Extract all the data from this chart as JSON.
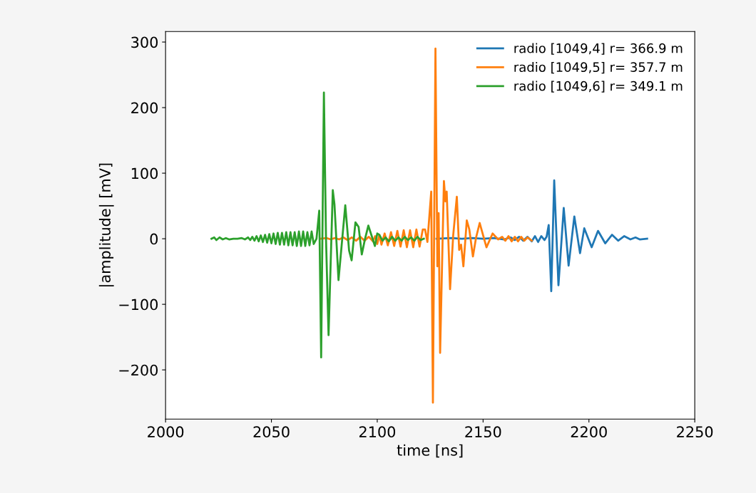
{
  "chart_data": {
    "type": "line",
    "xlabel": "time [ns]",
    "ylabel": "|amplitude| [mV]",
    "xlim": [
      2000,
      2250
    ],
    "xticks": [
      2000,
      2050,
      2100,
      2150,
      2200,
      2250
    ],
    "ylim": [
      -275,
      316
    ],
    "yticks": [
      {
        "value": -200,
        "label": "−200"
      },
      {
        "value": -100,
        "label": "−100"
      },
      0,
      100,
      200,
      300
    ],
    "grid": false,
    "legend": "top right",
    "marker": "none",
    "line_style": "solid",
    "series": [
      {
        "name": "radio [1049,4] r= 366.9 m",
        "color": "#1f77b4",
        "x": [
          2128,
          2135,
          2140,
          2145,
          2150,
          2155,
          2160,
          2163,
          2165,
          2167,
          2169,
          2171,
          2173,
          2174.5,
          2176,
          2177.5,
          2179,
          2180,
          2181,
          2182.2,
          2183.6,
          2185.6,
          2188.1,
          2190.4,
          2193.1,
          2195.8,
          2197.8,
          2201.3,
          2204.3,
          2207.7,
          2210.9,
          2213.8,
          2216.7,
          2219.6,
          2222,
          2224,
          2227.5
        ],
        "values": [
          0,
          1,
          0,
          1,
          0,
          1,
          -1,
          2,
          -2,
          3,
          -3,
          3,
          -4,
          4,
          -5,
          4,
          -2,
          3,
          21,
          -80,
          89,
          -71,
          47,
          -41,
          34,
          -22,
          16,
          -13,
          12,
          -7,
          6,
          -3,
          4,
          -1,
          2,
          -1,
          0
        ]
      },
      {
        "name": "radio [1049,5] r= 357.7 m",
        "color": "#ff7f0e",
        "x": [
          2073,
          2076,
          2078,
          2080,
          2082,
          2084,
          2086,
          2088,
          2090,
          2092,
          2094,
          2096,
          2098,
          2099,
          2100,
          2101,
          2102,
          2103.5,
          2105,
          2106.5,
          2108,
          2109.5,
          2111,
          2112.5,
          2114,
          2115.5,
          2117,
          2118.5,
          2120,
          2121.5,
          2122.6,
          2123.7,
          2125.5,
          2126.3,
          2127.5,
          2128.4,
          2129.0,
          2129.7,
          2131.5,
          2132.2,
          2132.8,
          2134.4,
          2135.9,
          2137.6,
          2138.7,
          2139.6,
          2140.7,
          2142.3,
          2143.5,
          2145.2,
          2146.7,
          2148.4,
          2151.6,
          2154.5,
          2157.1,
          2159,
          2160.5,
          2162,
          2163.5,
          2165,
          2166.5,
          2168,
          2169.5,
          2171,
          2173
        ],
        "values": [
          0,
          1,
          -1,
          1,
          -1,
          2,
          -2,
          2,
          -3,
          3,
          -3,
          3,
          -4,
          4,
          -8,
          6,
          -9,
          8,
          -10,
          10,
          -11,
          12,
          -12,
          13,
          -13,
          13,
          -13,
          14,
          -12,
          14,
          14,
          -5,
          72,
          -250,
          290,
          -42,
          39,
          -174,
          88,
          57,
          72,
          -77,
          6,
          64,
          -17,
          -9,
          -42,
          28,
          14,
          -27,
          2,
          24,
          -13,
          8,
          -1,
          3,
          -3,
          4,
          -4,
          3,
          -4,
          3,
          -3,
          2,
          -3
        ]
      },
      {
        "name": "radio [1049,6] r= 349.1 m",
        "color": "#2ca02c",
        "x": [
          2021.7,
          2023,
          2024,
          2025.5,
          2027,
          2028.5,
          2030,
          2032,
          2034,
          2036,
          2037.5,
          2039,
          2040,
          2041,
          2042,
          2043,
          2044,
          2045,
          2046,
          2047,
          2048,
          2049,
          2050,
          2051,
          2052,
          2053,
          2054,
          2055,
          2056,
          2057,
          2058,
          2059,
          2060,
          2061,
          2062,
          2063,
          2064,
          2065,
          2066,
          2067,
          2068,
          2069,
          2070,
          2071.3,
          2072.6,
          2073.5,
          2074.8,
          2075.8,
          2077.0,
          2079.0,
          2079.8,
          2081.7,
          2084.9,
          2086.7,
          2087.9,
          2089.7,
          2091.2,
          2092.7,
          2094.1,
          2095.8,
          2098.9,
          2100,
          2101,
          2102.5,
          2104,
          2105.5,
          2107,
          2108.5,
          2110,
          2111.5,
          2113,
          2114.5,
          2116,
          2117.5,
          2119,
          2120.5,
          2122
        ],
        "values": [
          0,
          2,
          -2,
          2,
          -1,
          1,
          -1,
          0,
          0,
          1,
          -1,
          2,
          -2,
          3,
          -3,
          4,
          -4,
          5,
          -5,
          6,
          -6,
          7,
          -7,
          8,
          -8,
          9,
          -9,
          9,
          -9,
          10,
          -10,
          10,
          -10,
          10,
          -11,
          11,
          -11,
          11,
          -11,
          10,
          -10,
          11,
          -8,
          0,
          43,
          -181,
          223,
          0,
          -147,
          74,
          52,
          -63,
          51,
          -18,
          -33,
          25,
          18,
          -24,
          -2,
          20,
          -11,
          8,
          6,
          -3,
          2,
          -4,
          3,
          -3,
          2,
          -3,
          3,
          -2,
          2,
          -3,
          3,
          -2,
          0
        ]
      }
    ]
  }
}
